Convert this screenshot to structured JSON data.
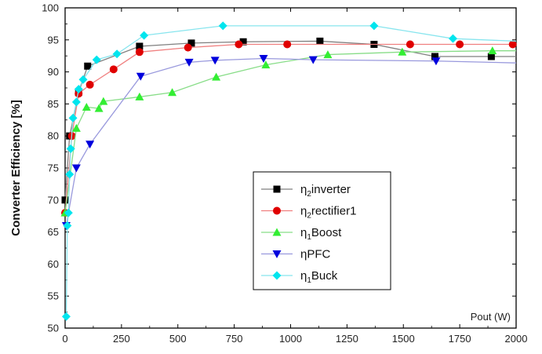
{
  "chart_data": {
    "type": "line",
    "title": "",
    "xlabel": "Pout (W)",
    "ylabel": "Converter Efficiency [%]",
    "xlim": [
      0,
      2000
    ],
    "ylim": [
      50,
      100
    ],
    "xticks": [
      0,
      250,
      500,
      750,
      1000,
      1250,
      1500,
      1750,
      2000
    ],
    "yticks": [
      50,
      55,
      60,
      65,
      70,
      75,
      80,
      85,
      90,
      95,
      100
    ],
    "grid": false,
    "legend_position": "center-right",
    "series": [
      {
        "name": "η2inverter",
        "legend_main": "η",
        "legend_sub": "2",
        "legend_rest": "inverter",
        "color": "#000000",
        "line_color": "#7f7f7f",
        "marker": "square",
        "x": [
          0,
          20,
          60,
          100,
          330,
          560,
          790,
          1130,
          1370,
          1640,
          1890,
          2000
        ],
        "y": [
          70,
          80,
          86.8,
          90.9,
          94.0,
          94.5,
          94.7,
          94.8,
          94.3,
          92.4,
          92.4,
          92.4
        ]
      },
      {
        "name": "η2rectifier1",
        "legend_main": "η",
        "legend_sub": "2",
        "legend_rest": "rectifier1",
        "color": "#e00000",
        "line_color": "#f08080",
        "marker": "circle",
        "x": [
          0,
          30,
          60,
          110,
          215,
          330,
          545,
          770,
          985,
          1530,
          1750,
          1985
        ],
        "y": [
          68,
          80,
          86.6,
          88,
          90.4,
          93.1,
          93.8,
          94.3,
          94.3,
          94.3,
          94.3,
          94.3
        ]
      },
      {
        "name": "η1Boost",
        "legend_main": "η",
        "legend_sub": "1",
        "legend_rest": "Boost",
        "color": "#33ee33",
        "line_color": "#88dd88",
        "marker": "triangle-up",
        "x": [
          0,
          50,
          95,
          150,
          170,
          330,
          475,
          670,
          890,
          1165,
          1495,
          1895,
          2000
        ],
        "y": [
          68,
          81.2,
          84.5,
          84.3,
          85.4,
          86.1,
          86.8,
          89.2,
          91.1,
          92.7,
          93.1,
          93.3,
          93.3
        ]
      },
      {
        "name": "ηPFC",
        "legend_main": "η",
        "legend_sub": "",
        "legend_rest": "PFC",
        "color": "#0000dd",
        "line_color": "#9999dd",
        "marker": "triangle-down",
        "x": [
          5,
          50,
          110,
          335,
          550,
          665,
          880,
          1100,
          1645,
          2000
        ],
        "y": [
          66,
          75,
          78.7,
          89.3,
          91.5,
          91.8,
          92.1,
          91.9,
          91.7,
          91.4
        ]
      },
      {
        "name": "η1Buck",
        "legend_main": "η",
        "legend_sub": "1",
        "legend_rest": "Buck",
        "color": "#00e5ee",
        "line_color": "#88e5ee",
        "marker": "diamond",
        "x": [
          5,
          10,
          15,
          20,
          25,
          35,
          50,
          60,
          80,
          140,
          230,
          350,
          700,
          1370,
          1720,
          2000
        ],
        "y": [
          51.8,
          66,
          68,
          74,
          78,
          82.8,
          85.3,
          87.3,
          88.8,
          91.9,
          92.8,
          95.7,
          97.2,
          97.2,
          95.2,
          94.8
        ]
      }
    ]
  }
}
